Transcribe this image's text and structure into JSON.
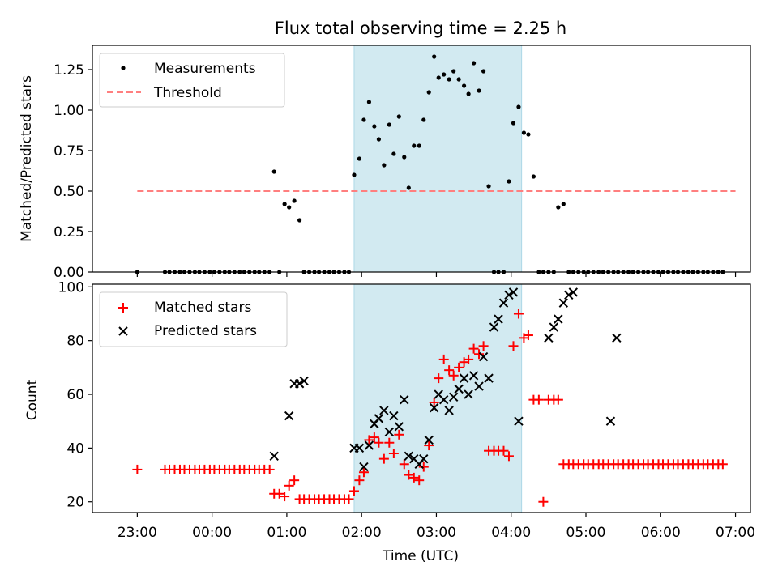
{
  "chart_data": [
    {
      "type": "scatter",
      "title": "Flux total observing time = 2.25 h",
      "xlabel": "",
      "ylabel": "Matched/Predicted stars",
      "xlim": [
        -1.6,
        7.2
      ],
      "ylim": [
        0,
        1.4
      ],
      "x_unit": "hours after 00:00 UTC",
      "yticks": [
        "0.00",
        "0.25",
        "0.50",
        "0.75",
        "1.00",
        "1.25"
      ],
      "highlight_span": {
        "x_start": 1.9,
        "x_end": 4.14,
        "color": "#add8e6"
      },
      "legend": {
        "position": "top-left",
        "entries": [
          {
            "label": "Measurements"
          },
          {
            "label": "Threshold"
          }
        ]
      },
      "threshold": {
        "name": "Threshold",
        "y": 0.5,
        "x_start": -1.0,
        "x_end": 7.0,
        "color": "#ff7f7f"
      },
      "series": [
        {
          "name": "Measurements",
          "color": "#000000",
          "x": [
            -1.0,
            -0.63,
            -0.57,
            -0.5,
            -0.43,
            -0.37,
            -0.3,
            -0.23,
            -0.17,
            -0.1,
            -0.03,
            0.03,
            0.1,
            0.17,
            0.23,
            0.3,
            0.37,
            0.43,
            0.5,
            0.57,
            0.63,
            0.7,
            0.77,
            0.83,
            0.9,
            0.97,
            1.03,
            1.1,
            1.17,
            1.23,
            1.3,
            1.37,
            1.43,
            1.5,
            1.57,
            1.63,
            1.7,
            1.77,
            1.83,
            1.9,
            1.97,
            2.03,
            2.1,
            2.17,
            2.23,
            2.3,
            2.37,
            2.43,
            2.5,
            2.57,
            2.63,
            2.7,
            2.77,
            2.83,
            2.9,
            2.97,
            3.03,
            3.1,
            3.17,
            3.23,
            3.3,
            3.37,
            3.43,
            3.5,
            3.57,
            3.63,
            3.7,
            3.77,
            3.83,
            3.9,
            3.97,
            4.03,
            4.1,
            4.17,
            4.23,
            4.3,
            4.37,
            4.43,
            4.5,
            4.57,
            4.63,
            4.7,
            4.77,
            4.83,
            4.9,
            4.97,
            5.03,
            5.1,
            5.17,
            5.23,
            5.3,
            5.37,
            5.43,
            5.5,
            5.57,
            5.63,
            5.7,
            5.77,
            5.83,
            5.9,
            5.97,
            6.03,
            6.1,
            6.17,
            6.23,
            6.3,
            6.37,
            6.43,
            6.5,
            6.57,
            6.63,
            6.7,
            6.77,
            6.83
          ],
          "y": [
            0,
            0,
            0,
            0,
            0,
            0,
            0,
            0,
            0,
            0,
            0,
            0,
            0,
            0,
            0,
            0,
            0,
            0,
            0,
            0,
            0,
            0,
            0,
            0.62,
            0,
            0.42,
            0.4,
            0.44,
            0.32,
            0,
            0,
            0,
            0,
            0,
            0,
            0,
            0,
            0,
            0,
            0.6,
            0.7,
            0.94,
            1.05,
            0.9,
            0.82,
            0.66,
            0.91,
            0.73,
            0.96,
            0.71,
            0.52,
            0.78,
            0.78,
            0.94,
            1.11,
            1.33,
            1.2,
            1.22,
            1.19,
            1.24,
            1.19,
            1.15,
            1.1,
            1.29,
            1.12,
            1.24,
            0.53,
            0,
            0,
            0,
            0.56,
            0.92,
            1.02,
            0.86,
            0.85,
            0.59,
            0,
            0,
            0,
            0,
            0.4,
            0.42,
            0,
            0,
            0,
            0,
            0,
            0,
            0,
            0,
            0,
            0,
            0,
            0,
            0,
            0,
            0,
            0,
            0,
            0,
            0,
            0,
            0,
            0,
            0,
            0,
            0,
            0,
            0,
            0,
            0,
            0,
            0,
            0
          ]
        }
      ]
    },
    {
      "type": "scatter",
      "title": "",
      "xlabel": "Time (UTC)",
      "ylabel": "Count",
      "xlim": [
        -1.6,
        7.2
      ],
      "ylim": [
        16,
        101
      ],
      "x_unit": "hours after 00:00 UTC",
      "xticks": [
        {
          "x": -1,
          "label": "23:00"
        },
        {
          "x": 0,
          "label": "00:00"
        },
        {
          "x": 1,
          "label": "01:00"
        },
        {
          "x": 2,
          "label": "02:00"
        },
        {
          "x": 3,
          "label": "03:00"
        },
        {
          "x": 4,
          "label": "04:00"
        },
        {
          "x": 5,
          "label": "05:00"
        },
        {
          "x": 6,
          "label": "06:00"
        },
        {
          "x": 7,
          "label": "07:00"
        }
      ],
      "yticks": [
        "20",
        "40",
        "60",
        "80",
        "100"
      ],
      "highlight_span": {
        "x_start": 1.9,
        "x_end": 4.14,
        "color": "#add8e6"
      },
      "legend": {
        "position": "top-left",
        "entries": [
          {
            "label": "Matched stars"
          },
          {
            "label": "Predicted stars"
          }
        ]
      },
      "series": [
        {
          "name": "Matched stars",
          "color": "#ff0000",
          "x": [
            -1.0,
            -0.63,
            -0.57,
            -0.5,
            -0.43,
            -0.37,
            -0.3,
            -0.23,
            -0.17,
            -0.1,
            -0.03,
            0.03,
            0.1,
            0.17,
            0.23,
            0.3,
            0.37,
            0.43,
            0.5,
            0.57,
            0.63,
            0.7,
            0.77,
            0.83,
            0.9,
            0.97,
            1.03,
            1.1,
            1.17,
            1.23,
            1.3,
            1.37,
            1.43,
            1.5,
            1.57,
            1.63,
            1.7,
            1.77,
            1.83,
            1.9,
            1.97,
            2.03,
            2.1,
            2.17,
            2.23,
            2.3,
            2.37,
            2.43,
            2.5,
            2.57,
            2.63,
            2.7,
            2.77,
            2.83,
            2.9,
            2.97,
            3.03,
            3.1,
            3.17,
            3.23,
            3.3,
            3.37,
            3.43,
            3.5,
            3.57,
            3.63,
            3.7,
            3.77,
            3.83,
            3.9,
            3.97,
            4.03,
            4.1,
            4.17,
            4.23,
            4.3,
            4.37,
            4.43,
            4.5,
            4.57,
            4.63,
            4.7,
            4.77,
            4.83,
            4.9,
            4.97,
            5.03,
            5.1,
            5.17,
            5.23,
            5.3,
            5.37,
            5.43,
            5.5,
            5.57,
            5.63,
            5.7,
            5.77,
            5.83,
            5.9,
            5.97,
            6.03,
            6.1,
            6.17,
            6.23,
            6.3,
            6.37,
            6.43,
            6.5,
            6.57,
            6.63,
            6.7,
            6.77,
            6.83
          ],
          "y": [
            32,
            32,
            32,
            32,
            32,
            32,
            32,
            32,
            32,
            32,
            32,
            32,
            32,
            32,
            32,
            32,
            32,
            32,
            32,
            32,
            32,
            32,
            32,
            23,
            23,
            22,
            26,
            28,
            21,
            21,
            21,
            21,
            21,
            21,
            21,
            21,
            21,
            21,
            21,
            24,
            28,
            31,
            43,
            44,
            42,
            36,
            42,
            38,
            45,
            34,
            30,
            29,
            28,
            33,
            41,
            57,
            66,
            73,
            69,
            67,
            70,
            72,
            73,
            77,
            75,
            78,
            39,
            39,
            39,
            39,
            37,
            78,
            90,
            81,
            82,
            58,
            58,
            20,
            58,
            58,
            58,
            34,
            34,
            34,
            34,
            34,
            34,
            34,
            34,
            34,
            34,
            34,
            34,
            34,
            34,
            34,
            34,
            34,
            34,
            34,
            34,
            34,
            34,
            34,
            34,
            34,
            34,
            34,
            34,
            34,
            34,
            34,
            34,
            34
          ]
        },
        {
          "name": "Predicted stars",
          "color": "#000000",
          "x": [
            0.83,
            1.03,
            1.1,
            1.17,
            1.23,
            1.9,
            1.97,
            2.03,
            2.1,
            2.17,
            2.23,
            2.3,
            2.37,
            2.43,
            2.5,
            2.57,
            2.63,
            2.7,
            2.77,
            2.83,
            2.9,
            2.97,
            3.03,
            3.1,
            3.17,
            3.23,
            3.3,
            3.37,
            3.43,
            3.5,
            3.57,
            3.63,
            3.7,
            3.77,
            3.83,
            3.9,
            3.97,
            4.03,
            4.1,
            4.5,
            4.57,
            4.63,
            4.7,
            4.77,
            4.83,
            5.33,
            5.41
          ],
          "y": [
            37,
            52,
            64,
            64,
            65,
            40,
            40,
            33,
            41,
            49,
            51,
            54,
            46,
            52,
            48,
            58,
            37,
            36,
            34,
            36,
            43,
            55,
            60,
            58,
            54,
            59,
            62,
            66,
            60,
            67,
            63,
            74,
            66,
            85,
            88,
            94,
            97,
            98,
            50,
            81,
            85,
            88,
            94,
            97,
            98,
            50,
            81
          ]
        }
      ]
    }
  ]
}
